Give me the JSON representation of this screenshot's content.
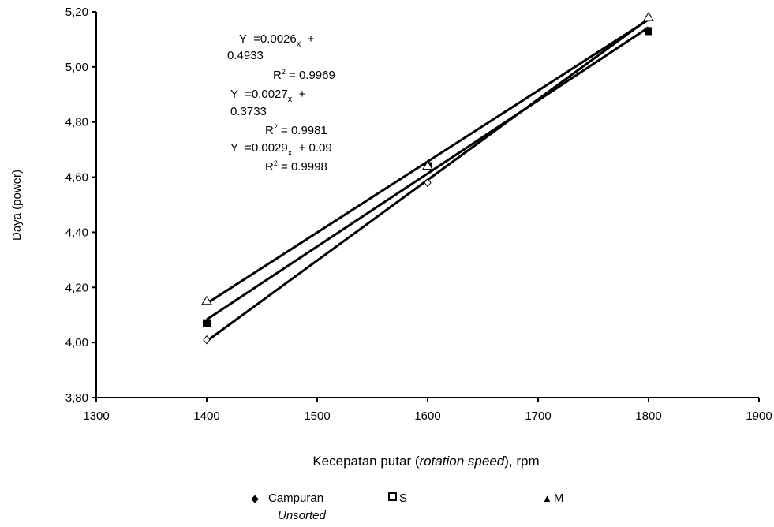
{
  "chart_data": {
    "type": "scatter",
    "xlabel_parts": [
      "Kecepatan putar (",
      "rotation speed",
      "), rpm"
    ],
    "ylabel": "Daya (power)",
    "xlim": [
      1300,
      1900
    ],
    "ylim": [
      3.8,
      5.2
    ],
    "xticks": [
      "1300",
      "1400",
      "1500",
      "1600",
      "1700",
      "1800",
      "1900"
    ],
    "yticks": [
      "3,80",
      "4,00",
      "4,20",
      "4,40",
      "4,60",
      "4,80",
      "5,00",
      "5,20"
    ],
    "x": [
      1400,
      1600,
      1800
    ],
    "series": [
      {
        "name": "Campuran",
        "name_sub": "Unsorted",
        "marker": "diamond",
        "values": [
          4.01,
          4.58,
          5.18
        ]
      },
      {
        "name": "S",
        "marker": "square",
        "values": [
          4.07,
          4.64,
          5.13
        ]
      },
      {
        "name": "M",
        "marker": "triangle",
        "values": [
          4.15,
          4.64,
          5.18
        ]
      }
    ],
    "equations": [
      {
        "y": "Y",
        "eq": "=0.0026",
        "x": "x",
        "rest": "+",
        "intercept": "0.4933",
        "r2_label": "R",
        "r2_exp": "2",
        "r2_value": "= 0.9969"
      },
      {
        "y": "Y",
        "eq": "=0.0027",
        "x": "x",
        "rest": "+",
        "intercept": "0.3733",
        "r2_label": "R",
        "r2_exp": "2",
        "r2_value": "= 0.9981"
      },
      {
        "y": "Y",
        "eq": "=0.0029",
        "x": "x",
        "rest": "+ 0.09",
        "r2_label": "R",
        "r2_exp": "2",
        "r2_value": "= 0.9998"
      }
    ],
    "grid": false,
    "legend": "bottom"
  }
}
